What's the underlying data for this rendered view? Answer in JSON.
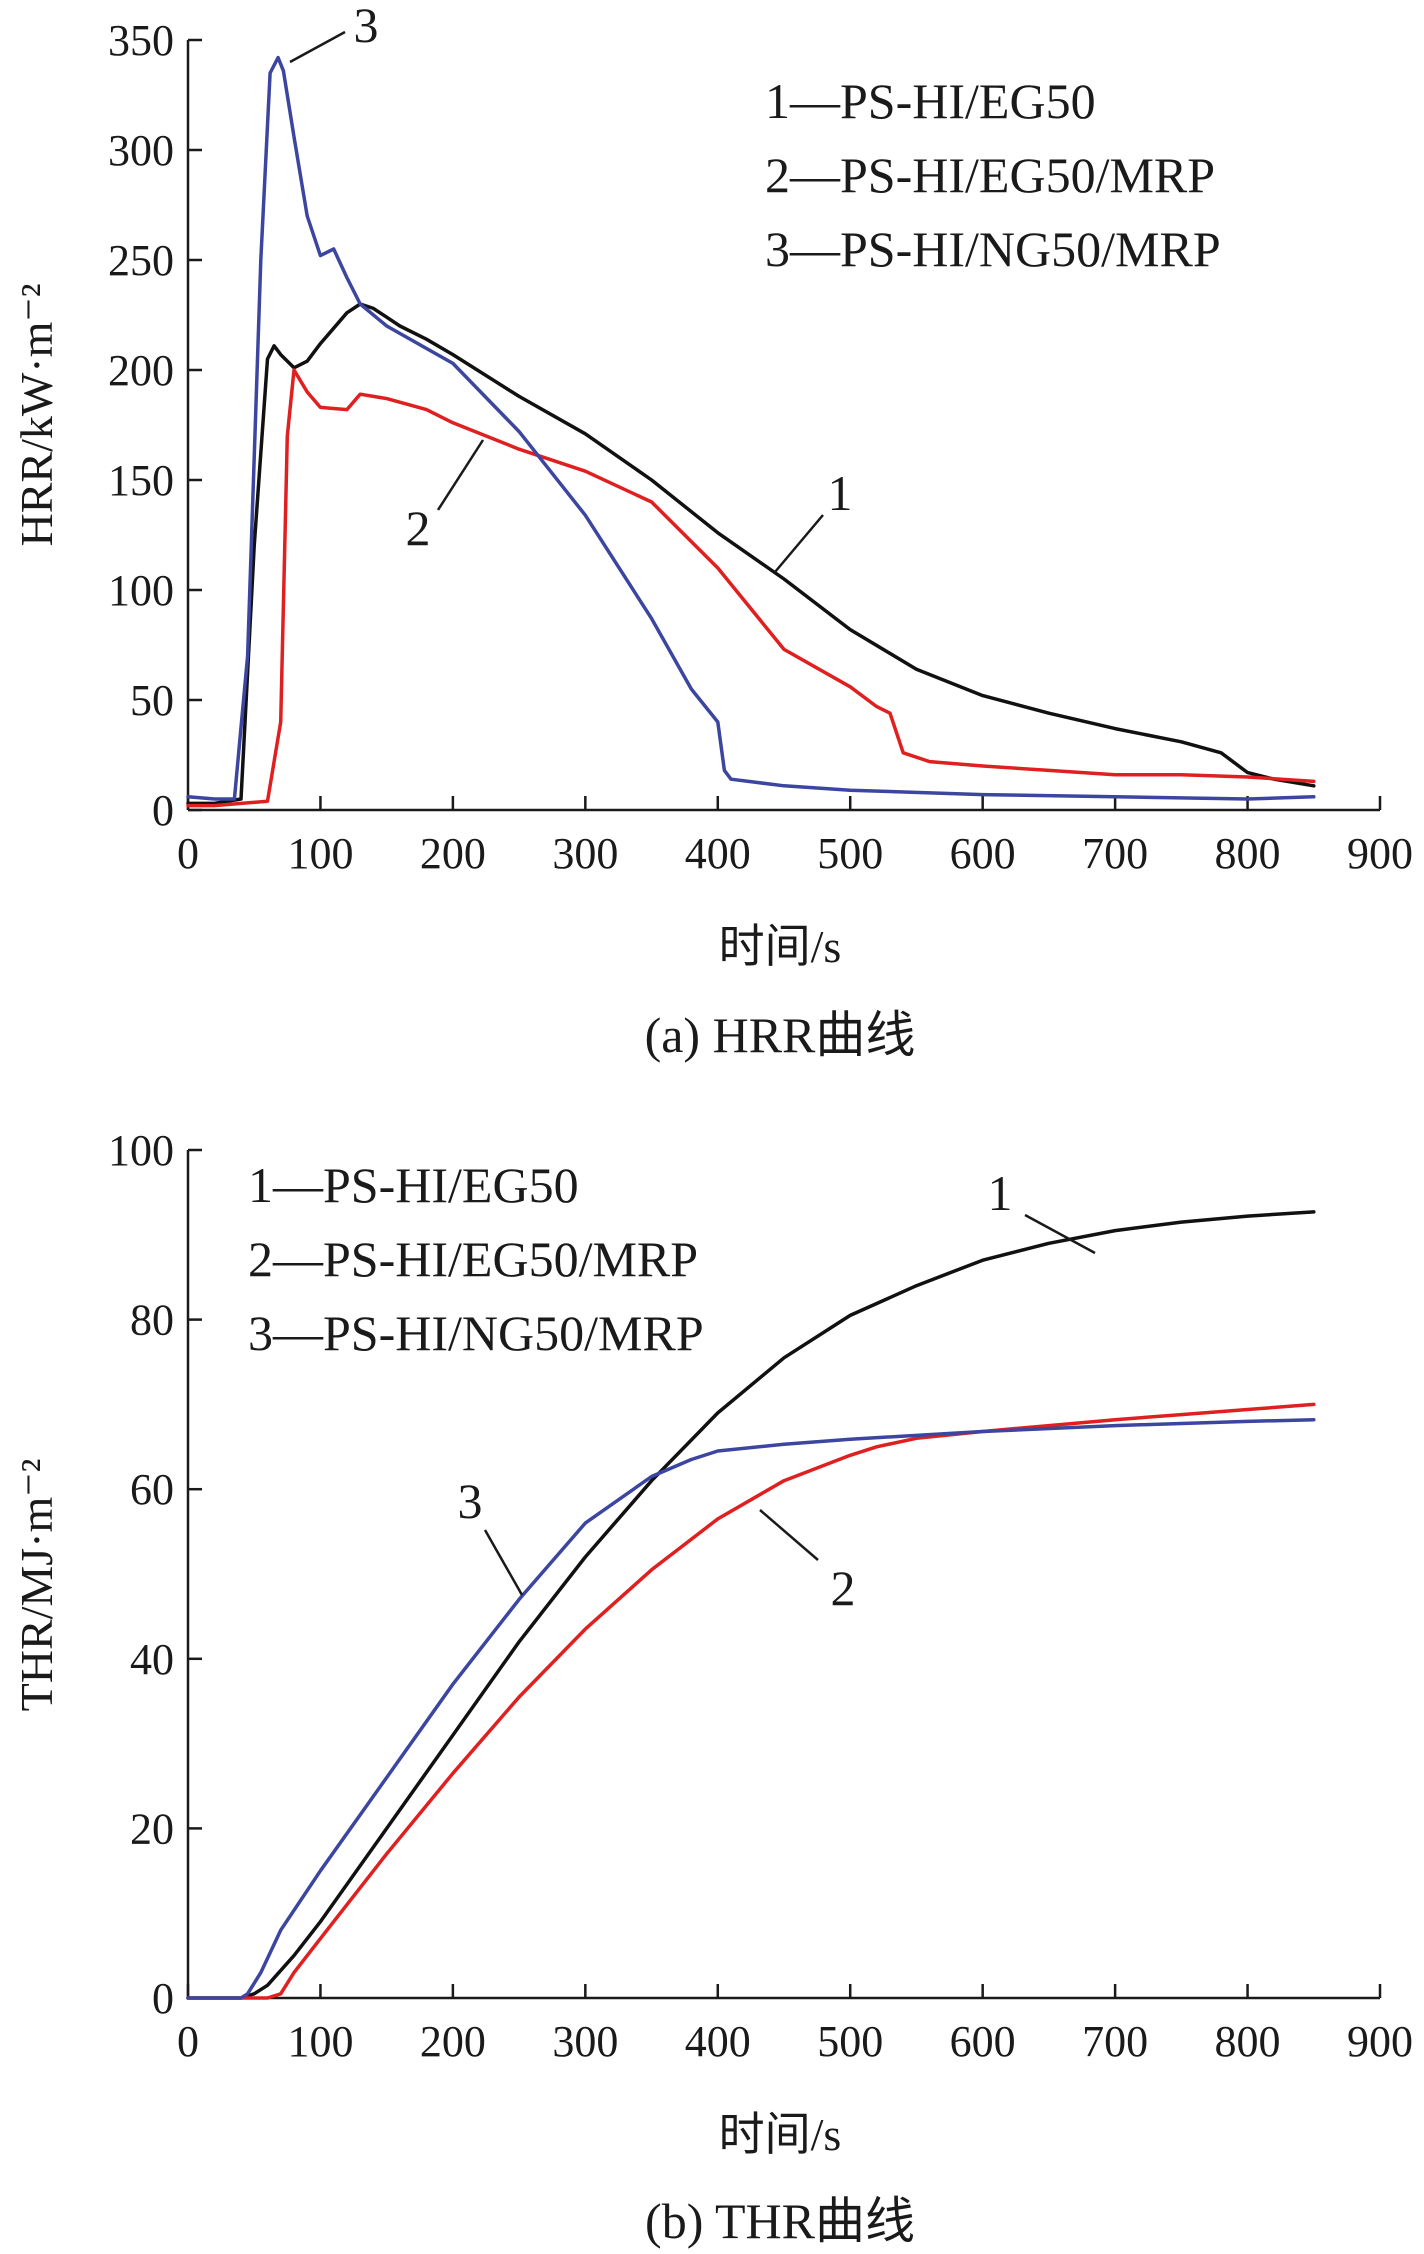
{
  "chart_data": [
    {
      "type": "line",
      "title": "",
      "caption": "(a) HRR曲线",
      "xlabel": "时间/s",
      "ylabel": "HRR/kW·m⁻²",
      "xlim": [
        0,
        900
      ],
      "ylim": [
        0,
        350
      ],
      "xticks": [
        0,
        100,
        200,
        300,
        400,
        500,
        600,
        700,
        800,
        900
      ],
      "yticks": [
        0,
        50,
        100,
        150,
        200,
        250,
        300,
        350
      ],
      "legend": {
        "placement": "top-right",
        "entries": [
          "1—PS-HI/EG50",
          "2—PS-HI/EG50/MRP",
          "3—PS-HI/NG50/MRP"
        ]
      },
      "series": [
        {
          "name": "1—PS-HI/EG50",
          "curve_label": "1",
          "color": "#111111",
          "x": [
            0,
            20,
            40,
            50,
            60,
            65,
            70,
            80,
            90,
            100,
            110,
            120,
            130,
            140,
            150,
            160,
            180,
            200,
            250,
            300,
            350,
            400,
            450,
            500,
            550,
            600,
            650,
            700,
            750,
            780,
            800,
            820,
            850
          ],
          "y": [
            3,
            3,
            5,
            120,
            205,
            211,
            207,
            201,
            204,
            212,
            219,
            226,
            230,
            228,
            224,
            220,
            214,
            207,
            188,
            171,
            150,
            126,
            105,
            82,
            64,
            52,
            44,
            37,
            31,
            26,
            17,
            14,
            11
          ]
        },
        {
          "name": "2—PS-HI/EG50/MRP",
          "curve_label": "2",
          "color": "#e02020",
          "x": [
            0,
            20,
            40,
            60,
            70,
            75,
            80,
            90,
            100,
            120,
            130,
            150,
            180,
            200,
            250,
            300,
            350,
            400,
            450,
            500,
            520,
            530,
            540,
            560,
            600,
            650,
            700,
            750,
            800,
            850
          ],
          "y": [
            2,
            2,
            3,
            4,
            40,
            170,
            200,
            190,
            183,
            182,
            189,
            187,
            182,
            176,
            164,
            154,
            140,
            110,
            73,
            56,
            47,
            44,
            26,
            22,
            20,
            18,
            16,
            16,
            15,
            13
          ]
        },
        {
          "name": "3—PS-HI/NG50/MRP",
          "curve_label": "3",
          "color": "#3c46a0",
          "x": [
            0,
            20,
            35,
            45,
            55,
            62,
            68,
            72,
            80,
            90,
            100,
            110,
            120,
            130,
            150,
            200,
            250,
            300,
            350,
            380,
            400,
            405,
            410,
            450,
            500,
            600,
            700,
            800,
            850
          ],
          "y": [
            6,
            5,
            5,
            70,
            250,
            335,
            342,
            336,
            306,
            270,
            252,
            255,
            242,
            230,
            220,
            203,
            172,
            134,
            87,
            55,
            40,
            18,
            14,
            11,
            9,
            7,
            6,
            5,
            6
          ]
        }
      ]
    },
    {
      "type": "line",
      "title": "",
      "caption": "(b) THR曲线",
      "xlabel": "时间/s",
      "ylabel": "THR/MJ·m⁻²",
      "xlim": [
        0,
        900
      ],
      "ylim": [
        0,
        100
      ],
      "xticks": [
        0,
        100,
        200,
        300,
        400,
        500,
        600,
        700,
        800,
        900
      ],
      "yticks": [
        0,
        20,
        40,
        60,
        80,
        100
      ],
      "legend": {
        "placement": "top-left",
        "entries": [
          "1—PS-HI/EG50",
          "2—PS-HI/EG50/MRP",
          "3—PS-HI/NG50/MRP"
        ]
      },
      "series": [
        {
          "name": "1—PS-HI/EG50",
          "curve_label": "1",
          "color": "#111111",
          "x": [
            0,
            40,
            50,
            60,
            80,
            100,
            150,
            200,
            250,
            300,
            350,
            400,
            450,
            500,
            550,
            600,
            650,
            700,
            750,
            800,
            850
          ],
          "y": [
            0,
            0,
            0.5,
            1.5,
            5,
            9,
            20,
            31,
            42,
            52,
            61,
            69,
            75.5,
            80.5,
            84,
            87,
            89,
            90.5,
            91.5,
            92.2,
            92.7
          ]
        },
        {
          "name": "2—PS-HI/EG50/MRP",
          "curve_label": "2",
          "color": "#e02020",
          "x": [
            0,
            60,
            70,
            80,
            100,
            150,
            200,
            250,
            300,
            350,
            400,
            450,
            500,
            520,
            550,
            600,
            650,
            700,
            750,
            800,
            850
          ],
          "y": [
            0,
            0,
            0.5,
            3,
            7,
            17,
            26.5,
            35.5,
            43.5,
            50.5,
            56.5,
            61,
            64,
            65,
            66,
            66.8,
            67.5,
            68.2,
            68.8,
            69.4,
            70
          ]
        },
        {
          "name": "3—PS-HI/NG50/MRP",
          "curve_label": "3",
          "color": "#3c46a0",
          "x": [
            0,
            40,
            45,
            55,
            70,
            100,
            150,
            200,
            250,
            300,
            350,
            380,
            400,
            450,
            500,
            600,
            700,
            800,
            850
          ],
          "y": [
            0,
            0,
            0.5,
            3,
            8,
            15,
            26,
            37,
            47,
            56,
            61.5,
            63.5,
            64.5,
            65.3,
            65.9,
            66.8,
            67.5,
            68,
            68.2
          ]
        }
      ]
    }
  ]
}
